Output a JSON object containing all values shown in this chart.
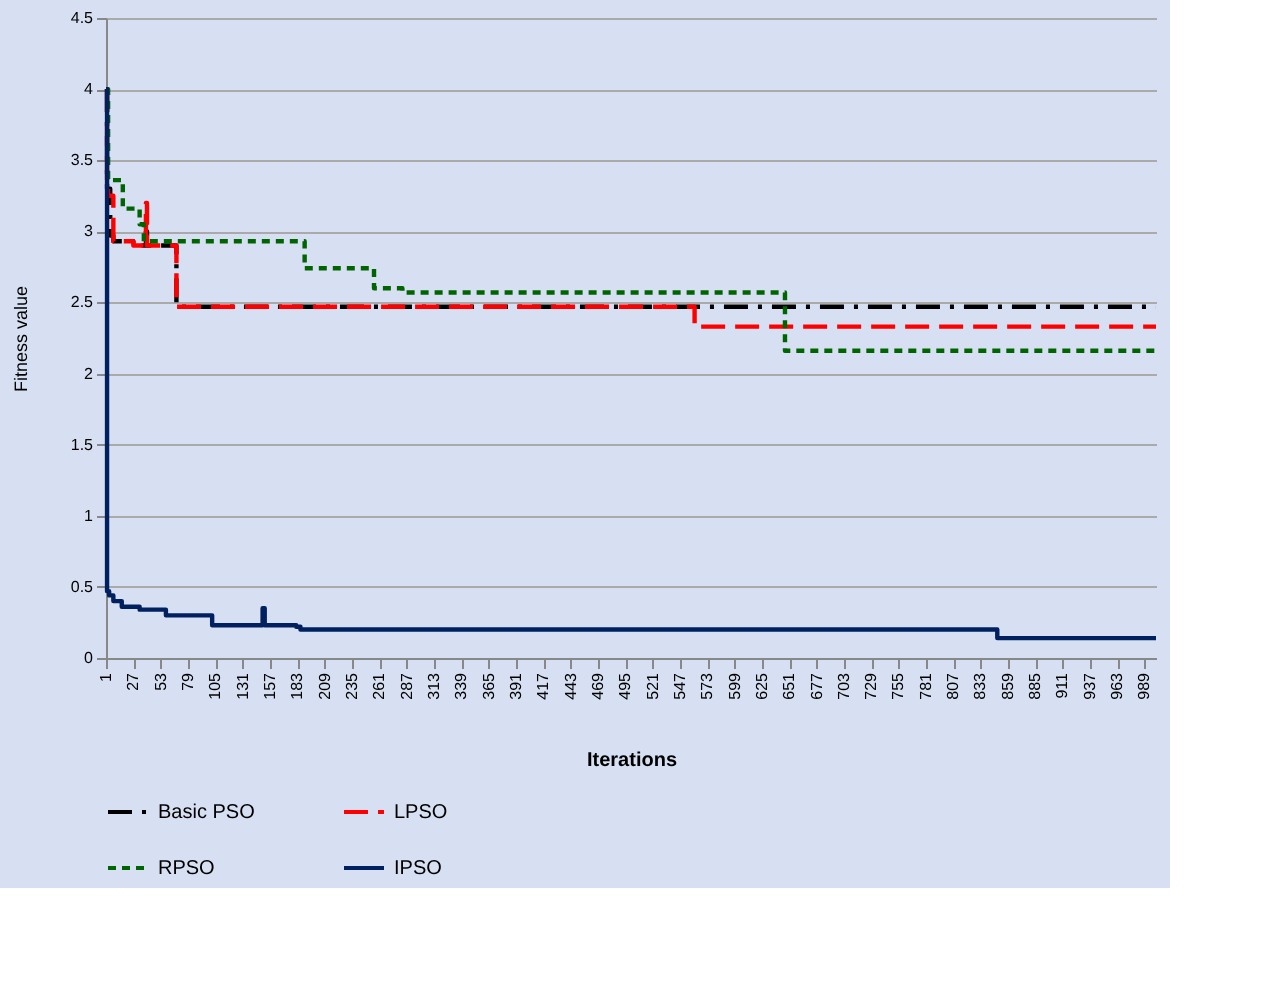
{
  "chart_data": {
    "type": "step",
    "xlabel": "Iterations",
    "ylabel": "Fitness value",
    "xlim": [
      1,
      1000
    ],
    "xticks": [
      1,
      27,
      53,
      79,
      105,
      131,
      157,
      183,
      209,
      235,
      261,
      287,
      313,
      339,
      365,
      391,
      417,
      443,
      469,
      495,
      521,
      547,
      573,
      599,
      625,
      651,
      677,
      703,
      729,
      755,
      781,
      807,
      833,
      859,
      885,
      911,
      937,
      963,
      989
    ],
    "ylim": [
      0,
      4.5
    ],
    "yticks": [
      0,
      0.5,
      1,
      1.5,
      2,
      2.5,
      3,
      3.5,
      4,
      4.5
    ],
    "grid": "y",
    "legend": "bottom",
    "series": [
      {
        "name": "Basic PSO",
        "color": "#000000",
        "line_style": "dashdot",
        "x": [
          1,
          2,
          5,
          8,
          27,
          39,
          40,
          68,
          1000
        ],
        "values": [
          4.0,
          3.3,
          2.97,
          2.93,
          2.9,
          3.0,
          2.9,
          2.47,
          2.47
        ]
      },
      {
        "name": "LPSO",
        "color": "#ff0000",
        "line_style": "dashed",
        "x": [
          1,
          2,
          3,
          8,
          27,
          39,
          40,
          68,
          561,
          1000
        ],
        "values": [
          4.0,
          3.3,
          3.25,
          2.93,
          2.9,
          3.2,
          2.9,
          2.47,
          2.33,
          2.33
        ]
      },
      {
        "name": "RPSO",
        "color": "#006400",
        "line_style": "dotted",
        "x": [
          1,
          3,
          17,
          33,
          37,
          190,
          256,
          283,
          647,
          1000
        ],
        "values": [
          4.0,
          3.36,
          3.16,
          3.05,
          2.93,
          2.74,
          2.6,
          2.57,
          2.16,
          2.16
        ]
      },
      {
        "name": "IPSO",
        "color": "#002060",
        "line_style": "solid",
        "x": [
          1,
          2,
          4,
          8,
          16,
          33,
          58,
          102,
          150,
          152,
          182,
          186,
          849,
          1000
        ],
        "values": [
          4.0,
          0.47,
          0.44,
          0.4,
          0.36,
          0.34,
          0.3,
          0.23,
          0.35,
          0.23,
          0.22,
          0.2,
          0.14,
          0.14
        ]
      }
    ]
  }
}
